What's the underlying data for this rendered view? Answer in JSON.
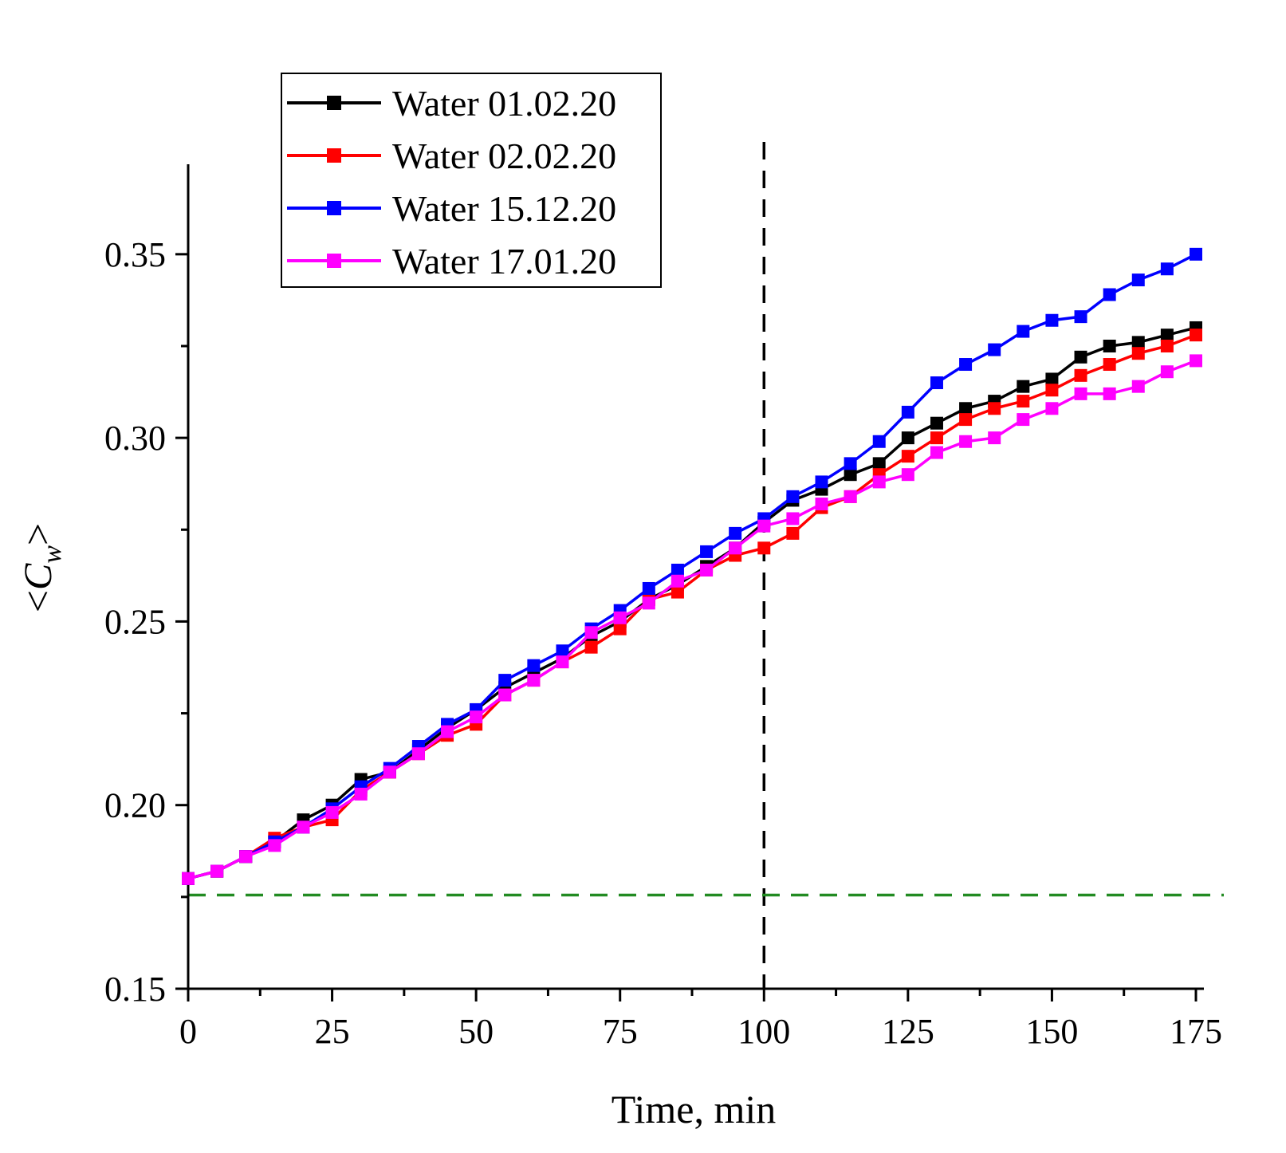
{
  "chart_data": {
    "type": "line",
    "title": "",
    "xlabel": "Time, min",
    "ylabel": "<C_w>",
    "ylabel_main": "C",
    "ylabel_sub": "w",
    "ylabel_open": "<",
    "ylabel_close": ">",
    "xlim": [
      0,
      175
    ],
    "ylim": [
      0.15,
      0.3745
    ],
    "xticks": [
      0,
      25,
      50,
      75,
      100,
      125,
      150,
      175
    ],
    "xtick_labels": [
      "0",
      "25",
      "50",
      "75",
      "100",
      "125",
      "150",
      "175"
    ],
    "yticks": [
      0.15,
      0.2,
      0.25,
      0.3,
      0.35
    ],
    "ytick_labels": [
      "0.15",
      "0.20",
      "0.25",
      "0.30",
      "0.35"
    ],
    "x": [
      0,
      5,
      10,
      15,
      20,
      25,
      30,
      35,
      40,
      45,
      50,
      55,
      60,
      65,
      70,
      75,
      80,
      85,
      90,
      95,
      100,
      105,
      110,
      115,
      120,
      125,
      130,
      135,
      140,
      145,
      150,
      155,
      160,
      165,
      170,
      175
    ],
    "series": [
      {
        "name": "Water 01.02.20",
        "color": "#000000",
        "values": [
          0.18,
          0.182,
          0.186,
          0.19,
          0.196,
          0.2,
          0.207,
          0.209,
          0.215,
          0.221,
          0.226,
          0.232,
          0.236,
          0.24,
          0.246,
          0.25,
          0.256,
          0.26,
          0.265,
          0.27,
          0.277,
          0.283,
          0.286,
          0.29,
          0.293,
          0.3,
          0.304,
          0.308,
          0.31,
          0.314,
          0.316,
          0.322,
          0.325,
          0.326,
          0.328,
          0.33
        ]
      },
      {
        "name": "Water 02.02.20",
        "color": "#ff0000",
        "values": [
          0.18,
          0.182,
          0.186,
          0.191,
          0.194,
          0.196,
          0.204,
          0.209,
          0.214,
          0.219,
          0.222,
          0.23,
          0.234,
          0.239,
          0.243,
          0.248,
          0.256,
          0.258,
          0.264,
          0.268,
          0.27,
          0.274,
          0.281,
          0.284,
          0.29,
          0.295,
          0.3,
          0.305,
          0.308,
          0.31,
          0.313,
          0.317,
          0.32,
          0.323,
          0.325,
          0.328
        ]
      },
      {
        "name": "Water 15.12.20",
        "color": "#0000ff",
        "values": [
          0.18,
          0.182,
          0.186,
          0.19,
          0.194,
          0.199,
          0.205,
          0.21,
          0.216,
          0.222,
          0.226,
          0.234,
          0.238,
          0.242,
          0.248,
          0.253,
          0.259,
          0.264,
          0.269,
          0.274,
          0.278,
          0.284,
          0.288,
          0.293,
          0.299,
          0.307,
          0.315,
          0.32,
          0.324,
          0.329,
          0.332,
          0.333,
          0.339,
          0.343,
          0.346,
          0.35
        ]
      },
      {
        "name": "Water 17.01.20",
        "color": "#ff00ff",
        "values": [
          0.18,
          0.182,
          0.186,
          0.189,
          0.194,
          0.198,
          0.203,
          0.209,
          0.214,
          0.22,
          0.224,
          0.23,
          0.234,
          0.239,
          0.247,
          0.251,
          0.255,
          0.261,
          0.264,
          0.27,
          0.276,
          0.278,
          0.282,
          0.284,
          0.288,
          0.29,
          0.296,
          0.299,
          0.3,
          0.305,
          0.308,
          0.312,
          0.312,
          0.314,
          0.318,
          0.321
        ]
      }
    ],
    "reference_lines": [
      {
        "orientation": "vertical",
        "value": 100,
        "color": "#000000",
        "style": "dashed"
      },
      {
        "orientation": "horizontal",
        "value": 0.1755,
        "color": "#228B22",
        "style": "dashed"
      }
    ],
    "legend_position": "top-left",
    "grid": false
  }
}
